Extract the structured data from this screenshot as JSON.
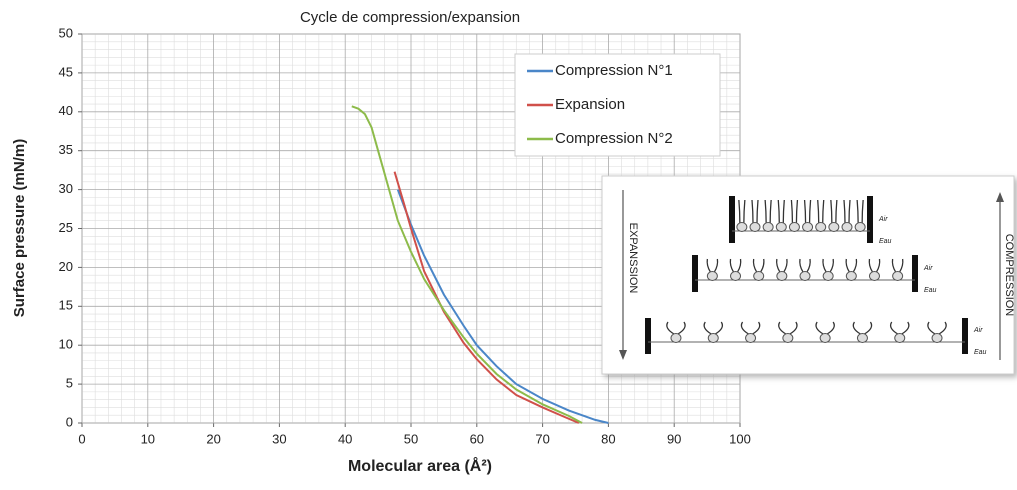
{
  "chart_data": {
    "type": "line",
    "title": "Cycle de compression/expansion",
    "x_label": "Molecular area (Å²)",
    "y_label": "Surface  pressure (mN/m)",
    "xlim": [
      0,
      100
    ],
    "ylim": [
      0,
      50
    ],
    "xticks": [
      0,
      10,
      20,
      30,
      40,
      50,
      60,
      70,
      80,
      90,
      100
    ],
    "yticks": [
      0,
      5,
      10,
      15,
      20,
      25,
      30,
      35,
      40,
      45,
      50
    ],
    "grid": true,
    "legend": "upper right",
    "series": [
      {
        "name": "Compression N°1",
        "color": "#4a86c8",
        "x": [
          48,
          50,
          52,
          55,
          58,
          60,
          63,
          66,
          70,
          74,
          78,
          80
        ],
        "values": [
          30,
          25.5,
          21.5,
          16.5,
          12.5,
          10,
          7.3,
          5,
          3.1,
          1.6,
          0.4,
          0
        ]
      },
      {
        "name": "Expansion",
        "color": "#d0504a",
        "x": [
          47.5,
          49,
          50,
          52,
          55,
          58,
          60,
          63,
          66,
          70,
          73,
          75.5
        ],
        "values": [
          32.3,
          28,
          25,
          19.5,
          14.3,
          10.3,
          8.2,
          5.6,
          3.6,
          2,
          0.9,
          0
        ]
      },
      {
        "name": "Compression N°2",
        "color": "#8dbb4a",
        "x": [
          41,
          42,
          43,
          44,
          45,
          46,
          47,
          48,
          50,
          52,
          55,
          58,
          60,
          63,
          66,
          70,
          74,
          76
        ],
        "values": [
          40.7,
          40.4,
          39.7,
          38,
          35,
          32,
          29,
          26,
          22,
          18.5,
          14.5,
          11,
          8.9,
          6.3,
          4.3,
          2.4,
          0.9,
          0
        ]
      }
    ]
  },
  "inset": {
    "left_label": "EXPANSSION",
    "right_label": "COMPRESSION",
    "air": "Air",
    "eau": "Eau"
  }
}
